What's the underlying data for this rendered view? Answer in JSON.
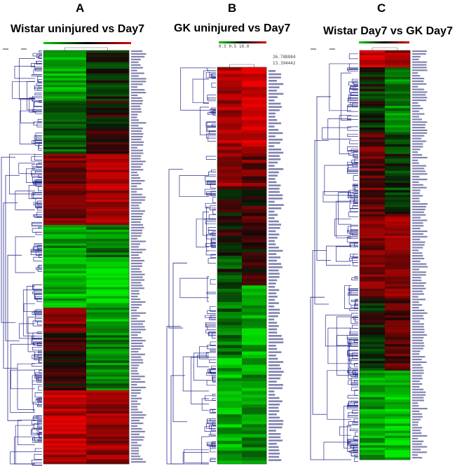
{
  "panels": [
    {
      "id": "A",
      "letter": "A",
      "title": "Wistar uninjured vs Day7",
      "color_key_colors": [
        "#00d000",
        "#000000",
        "#e00000"
      ],
      "heat_top_color": "#2a8a22",
      "heat_bottom_color": "#cc1a1a"
    },
    {
      "id": "B",
      "letter": "B",
      "title": "GK uninjured vs Day7",
      "color_key_labels": "0.5 0.5 10.0",
      "scale_values": [
        "26.788884",
        "13.394442"
      ],
      "color_key_colors": [
        "#00d000",
        "#000000",
        "#e00000"
      ]
    },
    {
      "id": "C",
      "letter": "C",
      "title": "Wistar Day7 vs GK Day7",
      "color_key_colors": [
        "#00d000",
        "#000000",
        "#e00000"
      ]
    }
  ],
  "colors": {
    "dendrogram": "#2b2f8f",
    "high": "#e01010",
    "low": "#10e010",
    "mid": "#000000",
    "label_text": "#1a1a6e"
  }
}
